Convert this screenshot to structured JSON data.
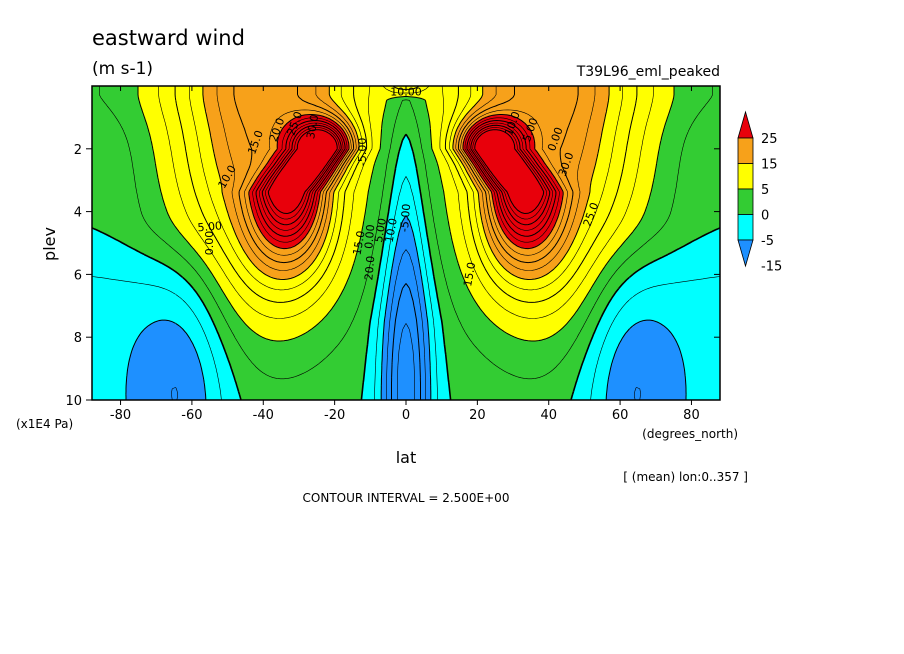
{
  "chart_data": {
    "type": "heatmap",
    "title": "eastward wind",
    "units": "(m s-1)",
    "run_label": "T39L96_eml_peaked",
    "xlabel": "lat",
    "x_units": "(degrees_north)",
    "ylabel": "plev",
    "y_units": "(x1E4 Pa)",
    "xlim": [
      -88,
      88
    ],
    "ylim": [
      10,
      0
    ],
    "x_ticks": [
      "-80",
      "-60",
      "-40",
      "-20",
      "0",
      "20",
      "40",
      "60",
      "80"
    ],
    "y_ticks": [
      "2",
      "4",
      "6",
      "8",
      "10"
    ],
    "averaging_note": "[ (mean) lon:0..357 ]",
    "contour_interval_text": "CONTOUR INTERVAL = 2.500E+00",
    "legend": {
      "placement": "right",
      "labels": [
        "25",
        "15",
        "5",
        "0",
        "-5",
        "-15"
      ],
      "colors": [
        "#e8000b",
        "#f7a11a",
        "#ffff00",
        "#33cc33",
        "#00ffff",
        "#1e90ff"
      ]
    },
    "contour_labels": [
      "0.00",
      "5.00",
      "10.0",
      "15.0",
      "20.0",
      "25.0",
      "30.0",
      "-5.00",
      "10.00",
      "0.00",
      "5.00",
      "10.0",
      "15.0",
      "20.0",
      "25.0",
      "30.0",
      "0.00",
      "5.00",
      "10.0",
      "15.0",
      "-5.00"
    ],
    "field_summary": {
      "jets": [
        {
          "lat": -27,
          "plev": 2.0,
          "max_u": 40
        },
        {
          "lat": 27,
          "plev": 2.0,
          "max_u": 40
        }
      ],
      "equatorial_min": {
        "lat": 0,
        "plev": 9.0,
        "min_u": -12.5
      },
      "polar_min": [
        {
          "lat": -62,
          "plev": 9.0,
          "min_u": -5
        },
        {
          "lat": 62,
          "plev": 9.0,
          "min_u": -5
        }
      ]
    }
  }
}
